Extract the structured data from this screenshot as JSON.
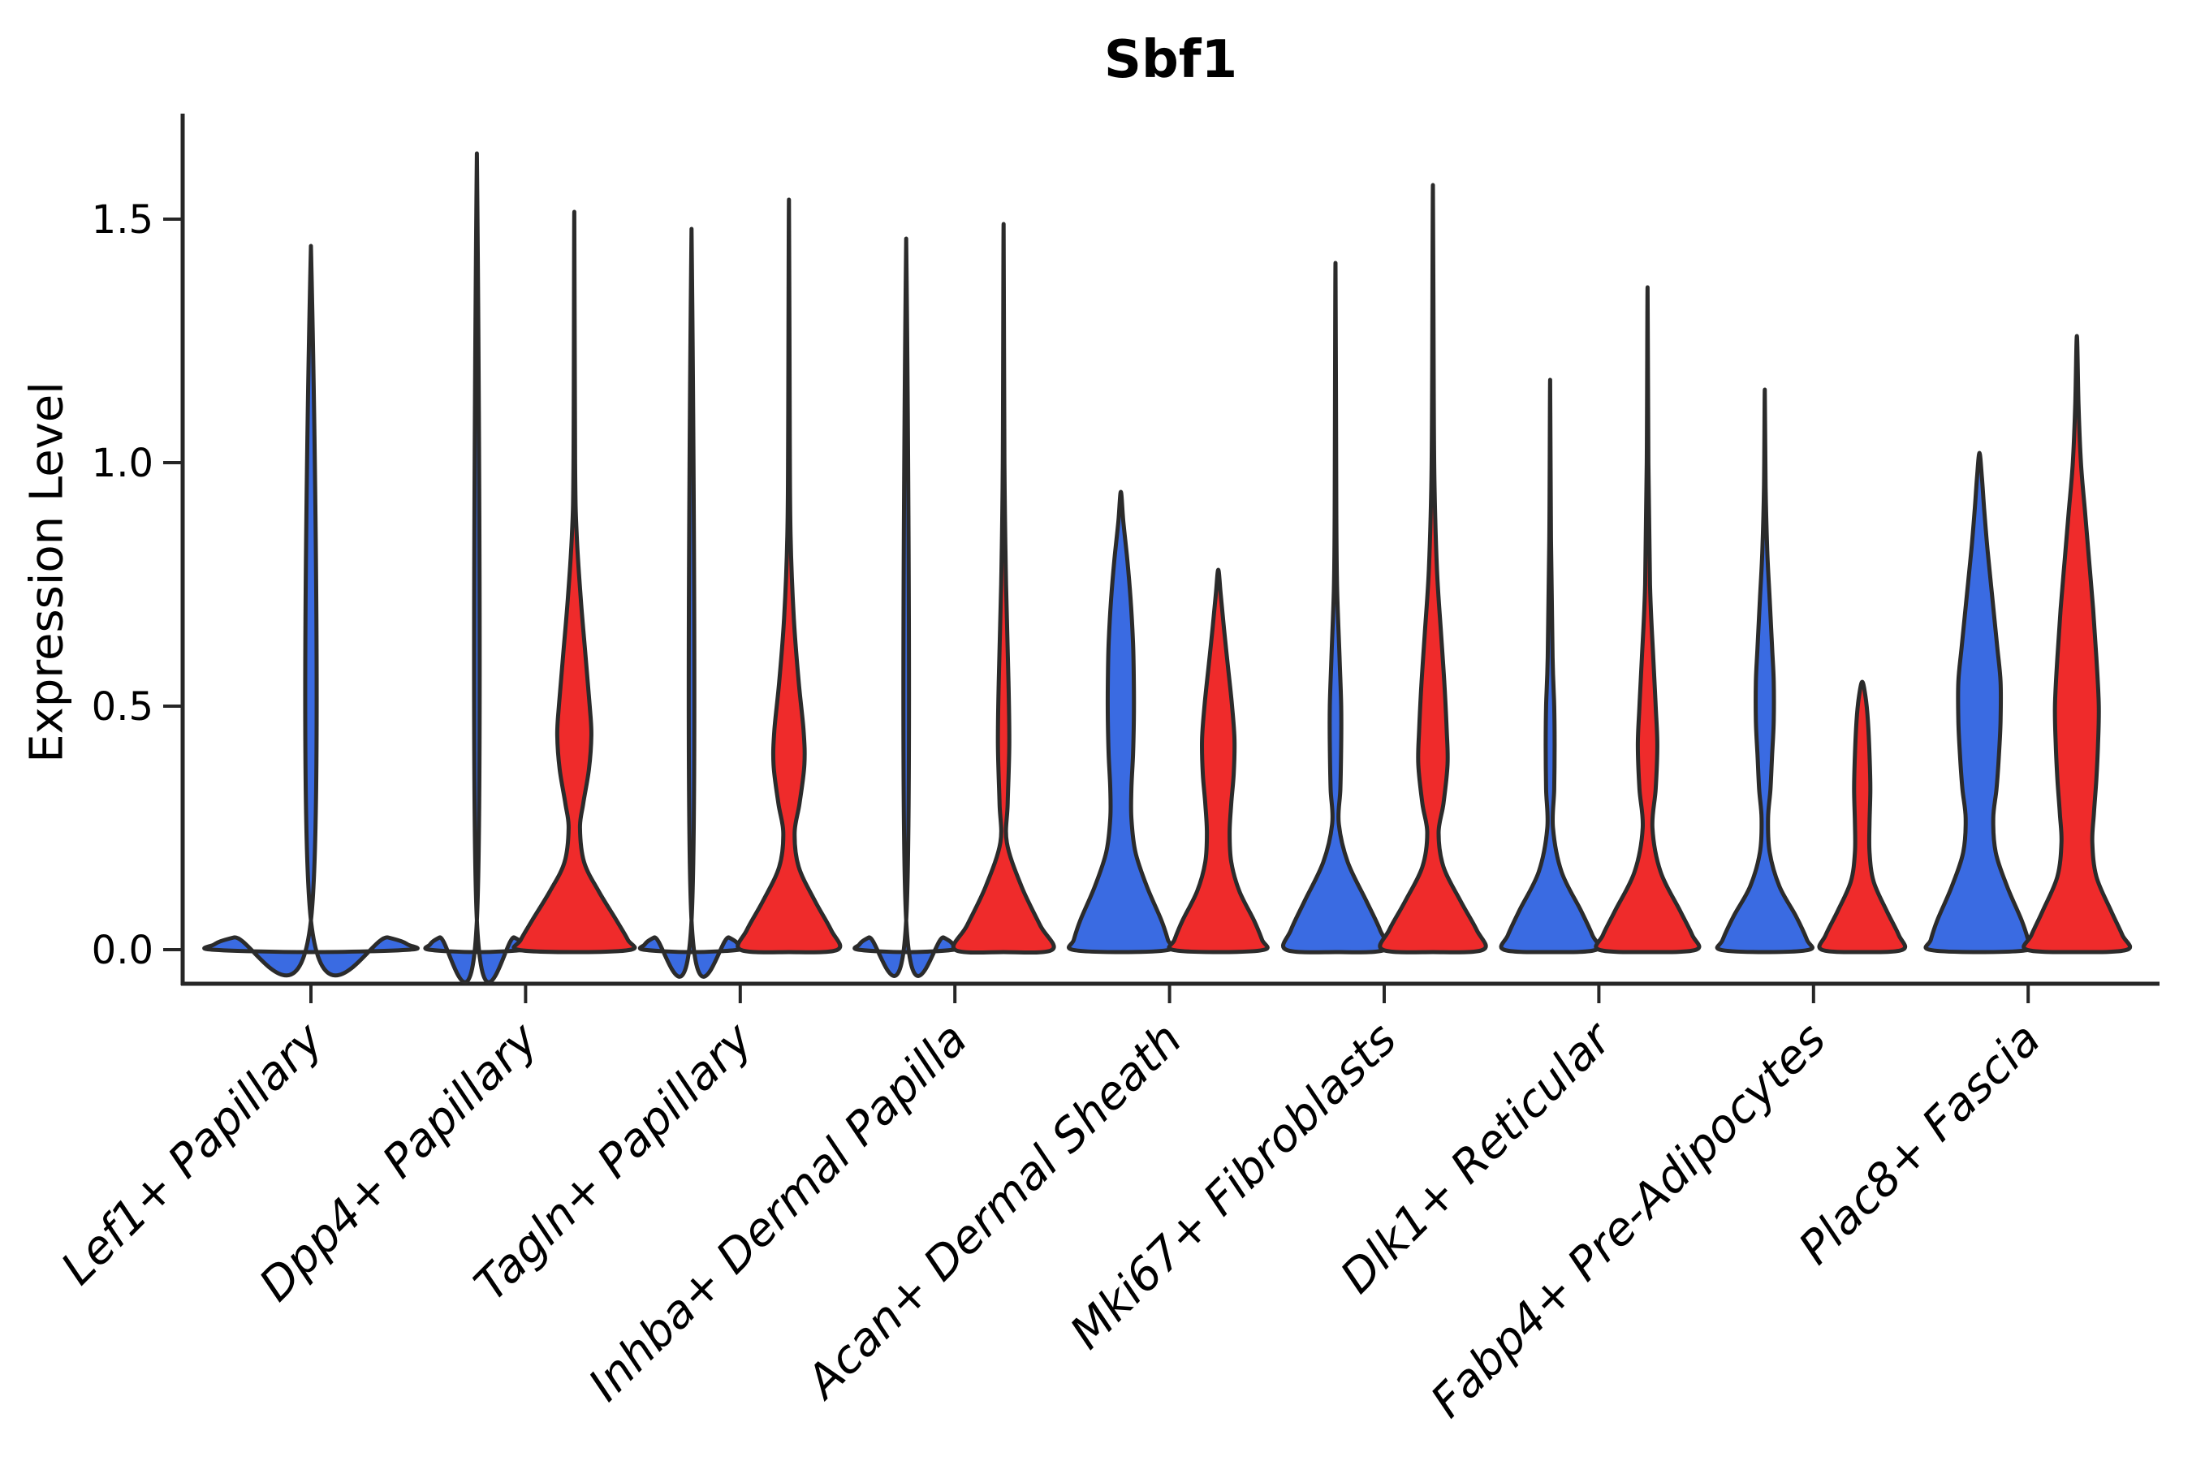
{
  "title": "Sbf1",
  "colors": {
    "blue": "#3a6be2",
    "red": "#ef2b2b",
    "edge": "#2b2b2b",
    "spine": "#262626",
    "text": "#000000"
  },
  "chart_data": {
    "type": "violin",
    "title": "Sbf1",
    "xlabel": "",
    "ylabel": "Expression Level",
    "ylim": [
      0,
      1.7
    ],
    "yticks": [
      0,
      0.5,
      1.0,
      1.5
    ],
    "ytick_labels": [
      "0.0",
      "0.5",
      "1.0",
      "1.5"
    ],
    "legend": "none",
    "grid": false,
    "split_series": [
      "blue",
      "red"
    ],
    "categories": [
      "Lef1+ Papillary",
      "Dpp4+ Papillary",
      "Tagln+ Papillary",
      "Inhba+ Dermal Papilla",
      "Acan+ Dermal Sheath",
      "Mki67+ Fibroblasts",
      "Dlk1+ Reticular",
      "Fabp4+ Pre-Adipocytes",
      "Plac8+ Fascia"
    ],
    "violins": [
      {
        "category_index": 0,
        "category": "Lef1+ Papillary",
        "side": "center",
        "series": "blue",
        "max": 1.445,
        "profile": [
          [
            1.445,
            0
          ],
          [
            0.06,
            0
          ],
          [
            0.025,
            95
          ],
          [
            0.01,
            120
          ],
          [
            0,
            122
          ]
        ]
      },
      {
        "category_index": 1,
        "category": "Dpp4+ Papillary",
        "side": "left",
        "series": "blue",
        "max": 1.635,
        "profile": [
          [
            1.635,
            0
          ],
          [
            0.06,
            0
          ],
          [
            0.025,
            46
          ],
          [
            0.01,
            58
          ],
          [
            0,
            59
          ]
        ]
      },
      {
        "category_index": 1,
        "category": "Dpp4+ Papillary",
        "side": "right",
        "series": "red",
        "max": 1.515,
        "profile": [
          [
            1.515,
            0
          ],
          [
            1.0,
            1
          ],
          [
            0.85,
            3
          ],
          [
            0.72,
            8
          ],
          [
            0.6,
            14
          ],
          [
            0.5,
            19
          ],
          [
            0.44,
            21
          ],
          [
            0.37,
            18
          ],
          [
            0.3,
            11
          ],
          [
            0.25,
            7
          ],
          [
            0.18,
            12
          ],
          [
            0.12,
            30
          ],
          [
            0.06,
            52
          ],
          [
            0.02,
            66
          ],
          [
            0,
            70
          ]
        ]
      },
      {
        "category_index": 2,
        "category": "Tagln+ Papillary",
        "side": "left",
        "series": "blue",
        "max": 1.48,
        "profile": [
          [
            1.48,
            0
          ],
          [
            0.06,
            0
          ],
          [
            0.025,
            46
          ],
          [
            0.01,
            58
          ],
          [
            0,
            59
          ]
        ]
      },
      {
        "category_index": 2,
        "category": "Tagln+ Papillary",
        "side": "right",
        "series": "red",
        "max": 1.54,
        "profile": [
          [
            1.54,
            0
          ],
          [
            1.05,
            1
          ],
          [
            0.85,
            2
          ],
          [
            0.68,
            6
          ],
          [
            0.55,
            12
          ],
          [
            0.45,
            18
          ],
          [
            0.38,
            19
          ],
          [
            0.3,
            13
          ],
          [
            0.24,
            7
          ],
          [
            0.17,
            12
          ],
          [
            0.1,
            32
          ],
          [
            0.04,
            52
          ],
          [
            0,
            60
          ]
        ]
      },
      {
        "category_index": 3,
        "category": "Inhba+ Dermal Papilla",
        "side": "left",
        "series": "blue",
        "max": 1.46,
        "profile": [
          [
            1.46,
            0
          ],
          [
            0.06,
            0
          ],
          [
            0.025,
            46
          ],
          [
            0.01,
            58
          ],
          [
            0,
            59
          ]
        ]
      },
      {
        "category_index": 3,
        "category": "Inhba+ Dermal Papilla",
        "side": "right",
        "series": "red",
        "max": 1.49,
        "profile": [
          [
            1.49,
            0
          ],
          [
            1.0,
            1
          ],
          [
            0.75,
            3
          ],
          [
            0.55,
            6
          ],
          [
            0.42,
            7
          ],
          [
            0.3,
            5
          ],
          [
            0.22,
            4
          ],
          [
            0.13,
            22
          ],
          [
            0.05,
            45
          ],
          [
            0,
            60
          ]
        ]
      },
      {
        "category_index": 4,
        "category": "Acan+ Dermal Sheath",
        "side": "left",
        "series": "blue",
        "max": 0.94,
        "profile": [
          [
            0.94,
            0
          ],
          [
            0.88,
            3
          ],
          [
            0.8,
            8
          ],
          [
            0.72,
            12
          ],
          [
            0.63,
            15
          ],
          [
            0.55,
            16
          ],
          [
            0.47,
            16
          ],
          [
            0.4,
            15
          ],
          [
            0.33,
            13
          ],
          [
            0.27,
            13
          ],
          [
            0.2,
            18
          ],
          [
            0.13,
            32
          ],
          [
            0.06,
            50
          ],
          [
            0.02,
            58
          ],
          [
            0,
            60
          ]
        ]
      },
      {
        "category_index": 4,
        "category": "Acan+ Dermal Sheath",
        "side": "right",
        "series": "red",
        "max": 0.78,
        "profile": [
          [
            0.78,
            0
          ],
          [
            0.73,
            3
          ],
          [
            0.66,
            7
          ],
          [
            0.58,
            12
          ],
          [
            0.5,
            17
          ],
          [
            0.43,
            20
          ],
          [
            0.36,
            19
          ],
          [
            0.3,
            16
          ],
          [
            0.24,
            14
          ],
          [
            0.18,
            16
          ],
          [
            0.12,
            26
          ],
          [
            0.06,
            44
          ],
          [
            0.02,
            54
          ],
          [
            0,
            57
          ]
        ]
      },
      {
        "category_index": 5,
        "category": "Mki67+ Fibroblasts",
        "side": "left",
        "series": "blue",
        "max": 1.41,
        "profile": [
          [
            1.41,
            0
          ],
          [
            0.9,
            1
          ],
          [
            0.74,
            2
          ],
          [
            0.6,
            5
          ],
          [
            0.5,
            7
          ],
          [
            0.42,
            7
          ],
          [
            0.33,
            6
          ],
          [
            0.26,
            4
          ],
          [
            0.18,
            15
          ],
          [
            0.1,
            38
          ],
          [
            0.04,
            55
          ],
          [
            0,
            61
          ]
        ]
      },
      {
        "category_index": 5,
        "category": "Mki67+ Fibroblasts",
        "side": "right",
        "series": "red",
        "max": 1.57,
        "profile": [
          [
            1.57,
            0
          ],
          [
            1.15,
            1
          ],
          [
            0.95,
            2
          ],
          [
            0.78,
            5
          ],
          [
            0.65,
            10
          ],
          [
            0.55,
            14
          ],
          [
            0.45,
            17
          ],
          [
            0.38,
            18
          ],
          [
            0.3,
            13
          ],
          [
            0.24,
            7
          ],
          [
            0.17,
            13
          ],
          [
            0.1,
            34
          ],
          [
            0.04,
            54
          ],
          [
            0,
            62
          ]
        ]
      },
      {
        "category_index": 6,
        "category": "Dlk1+ Reticular",
        "side": "left",
        "series": "blue",
        "max": 1.17,
        "profile": [
          [
            1.17,
            0
          ],
          [
            0.85,
            1
          ],
          [
            0.6,
            3
          ],
          [
            0.5,
            5
          ],
          [
            0.42,
            5.5
          ],
          [
            0.33,
            5
          ],
          [
            0.25,
            3.5
          ],
          [
            0.16,
            14
          ],
          [
            0.08,
            38
          ],
          [
            0.03,
            52
          ],
          [
            0,
            57
          ]
        ]
      },
      {
        "category_index": 6,
        "category": "Dlk1+ Reticular",
        "side": "right",
        "series": "red",
        "max": 1.36,
        "profile": [
          [
            1.36,
            0
          ],
          [
            1.0,
            1
          ],
          [
            0.75,
            3
          ],
          [
            0.6,
            7
          ],
          [
            0.5,
            10
          ],
          [
            0.42,
            12
          ],
          [
            0.33,
            10
          ],
          [
            0.25,
            6
          ],
          [
            0.16,
            16
          ],
          [
            0.08,
            40
          ],
          [
            0.03,
            55
          ],
          [
            0,
            60
          ]
        ]
      },
      {
        "category_index": 7,
        "category": "Fabp4+ Pre-Adipocytes",
        "side": "left",
        "series": "blue",
        "max": 1.15,
        "profile": [
          [
            1.15,
            0
          ],
          [
            0.95,
            1
          ],
          [
            0.82,
            3
          ],
          [
            0.72,
            6
          ],
          [
            0.62,
            9
          ],
          [
            0.55,
            11
          ],
          [
            0.47,
            11
          ],
          [
            0.4,
            9
          ],
          [
            0.33,
            7
          ],
          [
            0.27,
            4
          ],
          [
            0.2,
            6
          ],
          [
            0.13,
            18
          ],
          [
            0.07,
            38
          ],
          [
            0.02,
            52
          ],
          [
            0,
            55
          ]
        ]
      },
      {
        "category_index": 7,
        "category": "Fabp4+ Pre-Adipocytes",
        "side": "right",
        "series": "red",
        "max": 0.55,
        "profile": [
          [
            0.55,
            0
          ],
          [
            0.52,
            4
          ],
          [
            0.47,
            7
          ],
          [
            0.4,
            9
          ],
          [
            0.33,
            10
          ],
          [
            0.26,
            9
          ],
          [
            0.2,
            9
          ],
          [
            0.14,
            14
          ],
          [
            0.08,
            30
          ],
          [
            0.03,
            45
          ],
          [
            0,
            50
          ]
        ]
      },
      {
        "category_index": 8,
        "category": "Plac8+ Fascia",
        "side": "left",
        "series": "blue",
        "max": 1.02,
        "profile": [
          [
            1.02,
            0
          ],
          [
            0.97,
            3
          ],
          [
            0.9,
            6
          ],
          [
            0.82,
            10
          ],
          [
            0.72,
            16
          ],
          [
            0.62,
            22
          ],
          [
            0.55,
            26
          ],
          [
            0.47,
            26
          ],
          [
            0.4,
            24
          ],
          [
            0.33,
            21
          ],
          [
            0.27,
            17
          ],
          [
            0.2,
            20
          ],
          [
            0.13,
            34
          ],
          [
            0.06,
            52
          ],
          [
            0.02,
            60
          ],
          [
            0,
            62
          ]
        ]
      },
      {
        "category_index": 8,
        "category": "Plac8+ Fascia",
        "side": "right",
        "series": "red",
        "max": 1.26,
        "profile": [
          [
            1.26,
            0
          ],
          [
            1.12,
            2
          ],
          [
            1.0,
            5
          ],
          [
            0.9,
            10
          ],
          [
            0.8,
            15
          ],
          [
            0.7,
            20
          ],
          [
            0.6,
            24
          ],
          [
            0.5,
            27
          ],
          [
            0.42,
            26
          ],
          [
            0.35,
            24
          ],
          [
            0.28,
            21
          ],
          [
            0.22,
            19
          ],
          [
            0.15,
            24
          ],
          [
            0.08,
            42
          ],
          [
            0.03,
            56
          ],
          [
            0,
            62
          ]
        ]
      }
    ]
  }
}
